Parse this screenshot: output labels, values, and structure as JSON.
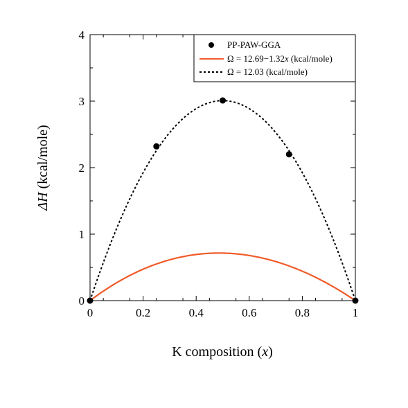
{
  "chart_data": {
    "type": "scatter",
    "xlabel": "K composition (x)",
    "xlabel_parts": [
      "K composition (",
      "x",
      ")"
    ],
    "ylabel": "ΔH (kcal/mole)",
    "ylabel_parts": [
      "ΔH",
      " (kcal/mole)"
    ],
    "xlim": [
      0,
      1
    ],
    "ylim": [
      0,
      4
    ],
    "x_ticks": [
      0,
      0.2,
      0.4,
      0.6,
      0.8,
      1
    ],
    "x_tick_labels": [
      "0",
      "0.2",
      "0.4",
      "0.6",
      "0.8",
      "1"
    ],
    "y_ticks": [
      0,
      1,
      2,
      3,
      4
    ],
    "y_tick_labels": [
      "0",
      "1",
      "2",
      "3",
      "4"
    ],
    "grid": false,
    "legend_position": "top-right",
    "series": [
      {
        "name": "PP-PAW-GGA",
        "kind": "points",
        "color": "#000000",
        "x": [
          0,
          0.25,
          0.5,
          0.75,
          1
        ],
        "y": [
          0,
          2.32,
          3.01,
          2.2,
          0
        ]
      },
      {
        "name": "Ω = 12.69−1.32x (kcal/mole)",
        "kind": "line",
        "style": "solid",
        "color": "#f05a28",
        "formula": "x*(1-x)*(12.69-1.32*x)*4.184/(4*4.4)"
      },
      {
        "name": "Ω = 12.03 (kcal/mole)",
        "kind": "line",
        "style": "dotted",
        "color": "#000000",
        "formula": "x*(1-x)*12.03"
      }
    ],
    "legend": [
      {
        "label": "PP-PAW-GGA",
        "marker": "dot"
      },
      {
        "label_parts": [
          "Ω = 12.69−1.32",
          "x",
          " (kcal/mole)"
        ],
        "marker": "solid-red"
      },
      {
        "label_parts": [
          "Ω = 12.03 (kcal/mole)"
        ],
        "marker": "dotted-black"
      }
    ]
  }
}
